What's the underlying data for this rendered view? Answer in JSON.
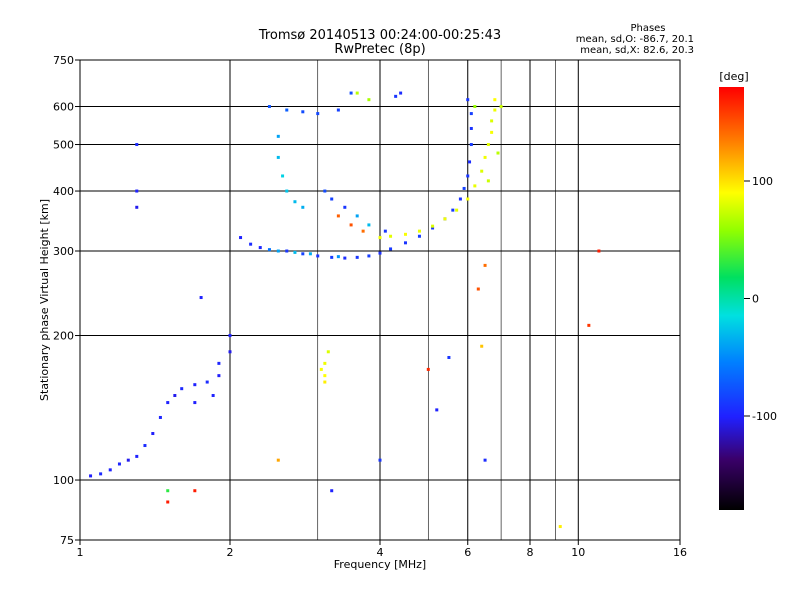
{
  "chart_data": {
    "type": "scatter",
    "title": "Tromsø 20140513 00:24:00-00:25:43",
    "subtitle": "RwPretec (8p)",
    "stats_title": "Phases",
    "stats_line1": "mean, sd,O: -86.7, 20.1",
    "stats_line2": "mean, sd,X:  82.6, 20.3",
    "xlabel": "Frequency [MHz]",
    "ylabel": "Stationary phase Virtual Height [km]",
    "x_scale": "log",
    "y_scale": "log",
    "xlim": [
      1,
      16
    ],
    "ylim": [
      75,
      750
    ],
    "x_ticks": [
      1,
      2,
      4,
      6,
      8,
      10,
      16
    ],
    "x_tick_labels": [
      "1",
      "2",
      "4",
      "6",
      "8",
      "10",
      "16"
    ],
    "x_minor_grid": [
      3,
      5,
      7,
      9
    ],
    "y_ticks": [
      75,
      100,
      200,
      300,
      400,
      500,
      600,
      750
    ],
    "y_tick_labels": [
      "75",
      "100",
      "200",
      "300",
      "400",
      "500",
      "600",
      "750"
    ],
    "grid": true,
    "colorbar": {
      "label": "[deg]",
      "range": [
        -180,
        180
      ],
      "ticks": [
        100,
        0,
        -100
      ],
      "tick_labels": [
        "100",
        "0",
        "-100"
      ]
    },
    "series": [
      {
        "points": [
          [
            2.6,
            300,
            -90
          ],
          [
            2.8,
            296,
            -85
          ],
          [
            3.0,
            293,
            -92
          ],
          [
            3.2,
            291,
            -88
          ],
          [
            3.4,
            290,
            -95
          ],
          [
            3.6,
            291,
            -90
          ],
          [
            3.8,
            293,
            -87
          ],
          [
            4.0,
            297,
            -93
          ],
          [
            4.2,
            303,
            -89
          ],
          [
            4.5,
            312,
            -91
          ],
          [
            4.8,
            322,
            -86
          ],
          [
            5.1,
            335,
            -90
          ],
          [
            5.4,
            350,
            -94
          ],
          [
            5.6,
            365,
            -88
          ],
          [
            5.8,
            385,
            -92
          ],
          [
            5.9,
            405,
            -85
          ],
          [
            6.0,
            430,
            -90
          ],
          [
            6.05,
            460,
            -95
          ],
          [
            6.1,
            500,
            -88
          ],
          [
            6.1,
            540,
            -92
          ],
          [
            6.1,
            580,
            -86
          ],
          [
            6.0,
            620,
            -90
          ],
          [
            2.1,
            320,
            -100
          ],
          [
            2.2,
            310,
            -95
          ],
          [
            2.3,
            305,
            -98
          ],
          [
            2.4,
            302,
            -60
          ],
          [
            2.5,
            300,
            -40
          ],
          [
            2.7,
            298,
            -30
          ],
          [
            2.9,
            296,
            -35
          ],
          [
            3.3,
            292,
            -45
          ],
          [
            3.1,
            400,
            -80
          ],
          [
            3.2,
            385,
            -85
          ],
          [
            3.4,
            370,
            -90
          ],
          [
            3.6,
            355,
            -40
          ],
          [
            3.8,
            340,
            -30
          ],
          [
            4.1,
            330,
            -90
          ],
          [
            2.4,
            600,
            -75
          ],
          [
            2.6,
            590,
            -70
          ],
          [
            2.8,
            585,
            -80
          ],
          [
            3.0,
            580,
            -82
          ],
          [
            3.3,
            590,
            -85
          ],
          [
            2.5,
            520,
            -40
          ],
          [
            2.5,
            470,
            -30
          ],
          [
            2.55,
            430,
            -20
          ],
          [
            2.6,
            400,
            -25
          ],
          [
            2.7,
            380,
            -30
          ],
          [
            2.8,
            370,
            -35
          ],
          [
            3.5,
            640,
            -80
          ],
          [
            4.3,
            630,
            -90
          ],
          [
            4.4,
            640,
            -95
          ],
          [
            2.0,
            200,
            -100
          ],
          [
            2.0,
            185,
            -105
          ],
          [
            1.9,
            175,
            -98
          ],
          [
            1.9,
            165,
            -102
          ],
          [
            1.8,
            160,
            -95
          ],
          [
            1.7,
            158,
            -100
          ],
          [
            1.6,
            155,
            -97
          ],
          [
            1.55,
            150,
            -105
          ],
          [
            1.5,
            145,
            -100
          ],
          [
            1.45,
            135,
            -98
          ],
          [
            1.4,
            125,
            -102
          ],
          [
            1.35,
            118,
            -95
          ],
          [
            1.3,
            112,
            -100
          ],
          [
            1.25,
            110,
            -105
          ],
          [
            1.2,
            108,
            -98
          ],
          [
            1.15,
            105,
            -100
          ],
          [
            1.1,
            103,
            -96
          ],
          [
            1.05,
            102,
            -102
          ],
          [
            1.85,
            150,
            -99
          ],
          [
            1.7,
            145,
            -101
          ],
          [
            1.3,
            400,
            -100
          ],
          [
            1.3,
            370,
            -105
          ],
          [
            1.3,
            500,
            -95
          ],
          [
            1.75,
            240,
            -100
          ],
          [
            1.5,
            95,
            30
          ],
          [
            5.5,
            180,
            -90
          ],
          [
            4.0,
            110,
            -90
          ],
          [
            5.2,
            140,
            -100
          ],
          [
            3.2,
            95,
            -100
          ],
          [
            6.5,
            110,
            -95
          ]
        ]
      },
      {
        "points": [
          [
            6.8,
            620,
            90
          ],
          [
            6.8,
            590,
            85
          ],
          [
            6.7,
            560,
            80
          ],
          [
            6.7,
            530,
            88
          ],
          [
            6.6,
            500,
            82
          ],
          [
            6.5,
            470,
            86
          ],
          [
            6.4,
            440,
            80
          ],
          [
            6.2,
            410,
            84
          ],
          [
            6.0,
            385,
            88
          ],
          [
            5.7,
            365,
            82
          ],
          [
            5.4,
            350,
            86
          ],
          [
            5.1,
            338,
            80
          ],
          [
            4.8,
            330,
            84
          ],
          [
            4.5,
            325,
            88
          ],
          [
            4.2,
            322,
            82
          ],
          [
            4.0,
            320,
            86
          ],
          [
            3.7,
            330,
            140
          ],
          [
            3.5,
            340,
            150
          ],
          [
            3.3,
            355,
            145
          ],
          [
            3.1,
            165,
            90
          ],
          [
            3.1,
            175,
            85
          ],
          [
            3.15,
            185,
            80
          ],
          [
            3.1,
            160,
            95
          ],
          [
            3.05,
            170,
            88
          ],
          [
            3.6,
            640,
            70
          ],
          [
            3.8,
            620,
            65
          ],
          [
            7.0,
            600,
            75
          ],
          [
            6.9,
            480,
            70
          ],
          [
            6.2,
            600,
            60
          ],
          [
            6.6,
            420,
            75
          ],
          [
            2.5,
            110,
            120
          ],
          [
            1.7,
            95,
            170
          ],
          [
            11.0,
            300,
            170
          ],
          [
            10.5,
            210,
            160
          ],
          [
            5.0,
            170,
            165
          ],
          [
            9.2,
            80,
            95
          ],
          [
            6.3,
            250,
            150
          ],
          [
            6.5,
            280,
            140
          ],
          [
            1.5,
            90,
            170
          ],
          [
            6.4,
            190,
            110
          ]
        ]
      }
    ]
  }
}
